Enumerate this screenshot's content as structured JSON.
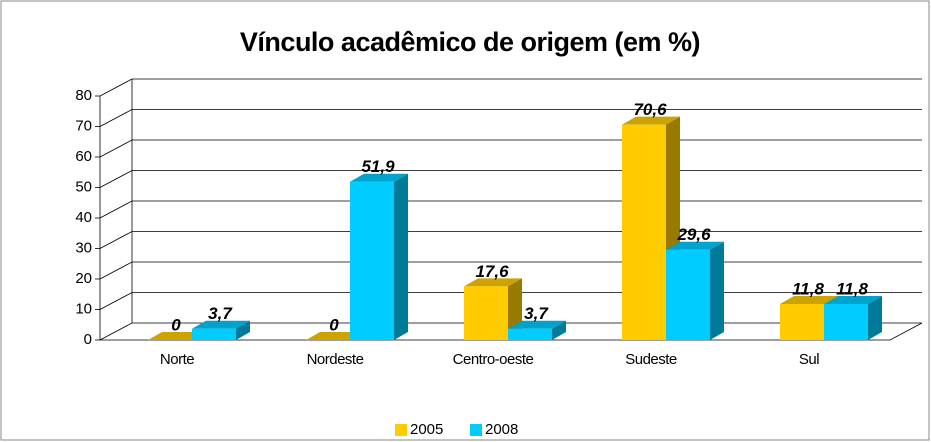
{
  "chart_data": {
    "type": "bar3d",
    "title": "Vínculo acadêmico de origem (em %)",
    "categories": [
      "Norte",
      "Nordeste",
      "Centro-oeste",
      "Sudeste",
      "Sul"
    ],
    "series": [
      {
        "name": "2005",
        "color": "#FFCC00",
        "values": [
          0,
          0,
          17.6,
          70.6,
          11.8
        ],
        "value_labels": [
          "0",
          "0",
          "17,6",
          "70,6",
          "11,8"
        ]
      },
      {
        "name": "2008",
        "color": "#00CCFF",
        "values": [
          3.7,
          51.9,
          3.7,
          29.6,
          11.8
        ],
        "value_labels": [
          "3,7",
          "51,9",
          "3,7",
          "29,6",
          "11,8"
        ]
      }
    ],
    "ylim": [
      0,
      80
    ],
    "yticks": [
      0,
      10,
      20,
      30,
      40,
      50,
      60,
      70,
      80
    ],
    "grid": true,
    "legend": "bottom"
  }
}
